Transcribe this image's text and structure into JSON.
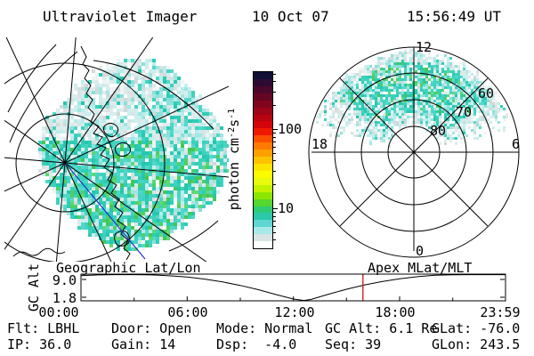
{
  "title": {
    "instrument": "Ultraviolet Imager",
    "date": "10 Oct 07",
    "time": "15:56:49 UT"
  },
  "colorbar": {
    "label_parts": [
      "photon cm",
      "-2",
      "s",
      "-1"
    ],
    "major_ticks": [
      "100",
      "10"
    ],
    "major_tick_values": [
      100,
      10
    ],
    "minor_tick_values": [
      4,
      5,
      6,
      7,
      8,
      9,
      20,
      30,
      40,
      50,
      60,
      70,
      80,
      90,
      200,
      300,
      400,
      500
    ],
    "scale": "log",
    "colors": [
      "#101035",
      "#2d0a32",
      "#49082c",
      "#640624",
      "#80041e",
      "#9c0418",
      "#b80410",
      "#d40408",
      "#ee1800",
      "#fb4f00",
      "#fd7a00",
      "#fda000",
      "#fdc300",
      "#fde400",
      "#fdfb00",
      "#e8fa0e",
      "#c2f200",
      "#8ee600",
      "#55d630",
      "#2eca74",
      "#2bc9a8",
      "#5ed6d2",
      "#a8e8e8",
      "#d8e4e4",
      "#ffffff"
    ]
  },
  "left_panel": {
    "caption": "Geographic Lat/Lon"
  },
  "right_panel": {
    "caption": "Apex MLat/MLT",
    "mlt_top": "12",
    "mlt_left": "18",
    "mlt_right": "6",
    "mlt_bottom": "0",
    "mlat_labels": [
      "80",
      "70",
      "60"
    ]
  },
  "orbit_plot": {
    "ylabel": "GC Alt",
    "ytick_labels": [
      "9.0",
      "1.8"
    ],
    "xtick_labels": [
      "00:00",
      "06:00",
      "12:00",
      "18:00",
      "23:59"
    ]
  },
  "status": {
    "rows": [
      [
        "Flt: LBHL",
        "Door: Open",
        "Mode: Normal",
        "GC Alt: 6.1 Re",
        "GLat: -76.0"
      ],
      [
        "IP: 36.0",
        "Gain: 14",
        "Dsp:  -4.0",
        "Seq: 39",
        "GLon: 243.5"
      ]
    ]
  },
  "image_palette": {
    "teal": [
      "#2fccb6",
      "#3bd2bc",
      "#27c6ae",
      "#52d8ca",
      "#45d4c2"
    ],
    "green": [
      "#4fcf63",
      "#5cd974",
      "#44c854"
    ],
    "light_cyan": [
      "#9fe6e2",
      "#b8ecea",
      "#8ae0da",
      "#c6eeee"
    ],
    "pale": [
      "#ffffff",
      "#eef4f4",
      "#ddeaea",
      "#cceeee"
    ],
    "gray": [
      "#d9e2e2",
      "#e4eaea",
      "#cfdada"
    ]
  },
  "chart_data": {
    "colorbar_scale": {
      "type": "colorbar",
      "label": "photon cm-2 s-1",
      "scale": "log",
      "labeled_ticks": [
        10,
        100
      ],
      "approx_range": [
        3,
        500
      ]
    },
    "left_image": {
      "type": "heatmap",
      "projection": "Geographic Lat/Lon (southern hemisphere, Antarctica)",
      "content": "Circular UV auroral image: mostly 5-20 photon cm-2 s-1 (teal), green band along Antarctic Peninsula coastline and lower-right, pale low-signal upper region; geographic graticule, coastline and blue meridian line overlaid",
      "footpoint_glat_glon": [
        -76.0,
        243.5
      ]
    },
    "right_image": {
      "type": "heatmap",
      "projection": "Apex MLat / MLT polar dial",
      "mlat_rings": [
        80,
        70,
        60,
        50
      ],
      "mlt_ticks": [
        12,
        18,
        6,
        0
      ],
      "content": "Dayside auroral patch spanning roughly 09-15 MLT between 55 and 80 MLat, intensity ~5-20 photon cm-2 s-1 with green maxima near 12 MLT"
    },
    "orbit": {
      "type": "line",
      "ylabel": "GC Alt",
      "units": "Re",
      "ytick_values": [
        9.0,
        1.8
      ],
      "xtick_labels": [
        "00:00",
        "06:00",
        "12:00",
        "18:00",
        "23:59"
      ],
      "x_hours": [
        0,
        1,
        2,
        3,
        4,
        5,
        6,
        7,
        8,
        9,
        10,
        11,
        12,
        12.6,
        13,
        14,
        15,
        16,
        17,
        18,
        19,
        20,
        21,
        22,
        23,
        23.98
      ],
      "alt_re": [
        8.9,
        9.1,
        9.2,
        9.2,
        9.1,
        8.85,
        8.5,
        7.9,
        7.1,
        6.1,
        4.9,
        3.5,
        2.2,
        1.8,
        2.1,
        3.6,
        5.0,
        6.2,
        7.2,
        8.0,
        8.6,
        9.0,
        9.15,
        9.2,
        9.2,
        9.2
      ],
      "marker_hour": 15.93,
      "marker_color": "#cc0000"
    }
  }
}
